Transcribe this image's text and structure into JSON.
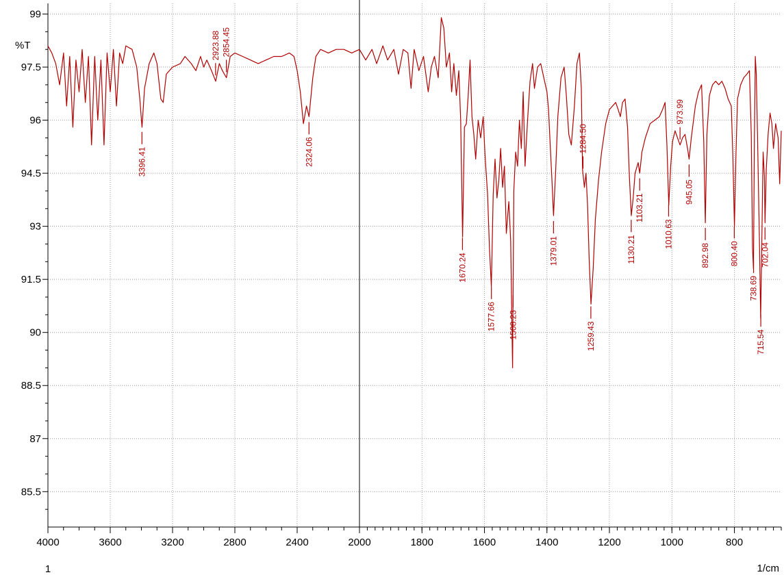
{
  "chart_data": {
    "type": "line",
    "title": "",
    "ylabel": "%T",
    "xlabel": "1/cm",
    "spectrum_index": "1",
    "xlim": [
      4000,
      650
    ],
    "ylim": [
      84.5,
      99.3
    ],
    "x_breaks": [
      [
        4000,
        2000,
        0,
        455
      ],
      [
        2000,
        650,
        455,
        1071
      ]
    ],
    "grid": true,
    "colors": {
      "spectrum": "#b00000",
      "grid": "#9a9a9a",
      "axis": "#000000",
      "index": "#c00000"
    },
    "x_ticks": [
      {
        "value": 4000,
        "label": "4000"
      },
      {
        "value": 3600,
        "label": "3600"
      },
      {
        "value": 3200,
        "label": "3200"
      },
      {
        "value": 2800,
        "label": "2800"
      },
      {
        "value": 2400,
        "label": "2400"
      },
      {
        "value": 2000,
        "label": "2000"
      },
      {
        "value": 1800,
        "label": "1800"
      },
      {
        "value": 1600,
        "label": "1600"
      },
      {
        "value": 1400,
        "label": "1400"
      },
      {
        "value": 1200,
        "label": "1200"
      },
      {
        "value": 1000,
        "label": "1000"
      },
      {
        "value": 800,
        "label": "800"
      }
    ],
    "y_ticks": [
      {
        "value": 99,
        "label": "99"
      },
      {
        "value": 97.5,
        "label": "97.5"
      },
      {
        "value": 96,
        "label": "96"
      },
      {
        "value": 94.5,
        "label": "94.5"
      },
      {
        "value": 93,
        "label": "93"
      },
      {
        "value": 91.5,
        "label": "91.5"
      },
      {
        "value": 90,
        "label": "90"
      },
      {
        "value": 88.5,
        "label": "88.5"
      },
      {
        "value": 87,
        "label": "87"
      },
      {
        "value": 85.5,
        "label": "85.5"
      }
    ],
    "spectrum": [
      [
        4000,
        98.1
      ],
      [
        3975,
        97.9
      ],
      [
        3950,
        97.6
      ],
      [
        3925,
        97.0
      ],
      [
        3900,
        97.9
      ],
      [
        3880,
        96.4
      ],
      [
        3860,
        97.8
      ],
      [
        3840,
        95.8
      ],
      [
        3820,
        97.7
      ],
      [
        3800,
        96.8
      ],
      [
        3780,
        98.0
      ],
      [
        3760,
        96.5
      ],
      [
        3740,
        97.8
      ],
      [
        3720,
        95.3
      ],
      [
        3700,
        97.8
      ],
      [
        3680,
        96.0
      ],
      [
        3660,
        97.7
      ],
      [
        3640,
        95.3
      ],
      [
        3620,
        97.9
      ],
      [
        3600,
        96.8
      ],
      [
        3580,
        98.0
      ],
      [
        3560,
        96.4
      ],
      [
        3540,
        97.9
      ],
      [
        3520,
        97.6
      ],
      [
        3500,
        98.1
      ],
      [
        3460,
        98.0
      ],
      [
        3430,
        97.5
      ],
      [
        3410,
        96.6
      ],
      [
        3396,
        95.8
      ],
      [
        3380,
        96.9
      ],
      [
        3350,
        97.6
      ],
      [
        3320,
        97.9
      ],
      [
        3300,
        97.6
      ],
      [
        3275,
        96.6
      ],
      [
        3260,
        96.5
      ],
      [
        3240,
        97.3
      ],
      [
        3200,
        97.5
      ],
      [
        3150,
        97.6
      ],
      [
        3120,
        97.8
      ],
      [
        3080,
        97.6
      ],
      [
        3050,
        97.4
      ],
      [
        3020,
        97.8
      ],
      [
        3000,
        97.5
      ],
      [
        2980,
        97.7
      ],
      [
        2950,
        97.4
      ],
      [
        2923,
        97.1
      ],
      [
        2900,
        97.6
      ],
      [
        2880,
        97.4
      ],
      [
        2854,
        97.2
      ],
      [
        2830,
        97.8
      ],
      [
        2800,
        97.9
      ],
      [
        2750,
        97.8
      ],
      [
        2700,
        97.7
      ],
      [
        2650,
        97.6
      ],
      [
        2600,
        97.7
      ],
      [
        2550,
        97.8
      ],
      [
        2500,
        97.8
      ],
      [
        2450,
        97.9
      ],
      [
        2420,
        97.8
      ],
      [
        2400,
        97.4
      ],
      [
        2380,
        96.8
      ],
      [
        2360,
        95.9
      ],
      [
        2340,
        96.4
      ],
      [
        2324,
        96.1
      ],
      [
        2300,
        97.2
      ],
      [
        2280,
        97.8
      ],
      [
        2250,
        98.0
      ],
      [
        2200,
        97.9
      ],
      [
        2150,
        98.0
      ],
      [
        2100,
        98.0
      ],
      [
        2050,
        97.9
      ],
      [
        2000,
        98.0
      ],
      [
        1980,
        97.7
      ],
      [
        1960,
        98.0
      ],
      [
        1945,
        97.6
      ],
      [
        1925,
        98.1
      ],
      [
        1910,
        97.7
      ],
      [
        1890,
        98.0
      ],
      [
        1875,
        97.3
      ],
      [
        1860,
        98.0
      ],
      [
        1845,
        97.9
      ],
      [
        1835,
        96.9
      ],
      [
        1825,
        98.0
      ],
      [
        1810,
        97.4
      ],
      [
        1795,
        97.8
      ],
      [
        1780,
        96.8
      ],
      [
        1770,
        97.5
      ],
      [
        1760,
        97.8
      ],
      [
        1748,
        97.2
      ],
      [
        1738,
        98.9
      ],
      [
        1730,
        98.6
      ],
      [
        1722,
        97.5
      ],
      [
        1712,
        97.9
      ],
      [
        1705,
        96.8
      ],
      [
        1698,
        97.6
      ],
      [
        1690,
        96.7
      ],
      [
        1682,
        97.4
      ],
      [
        1676,
        96.0
      ],
      [
        1670,
        92.7
      ],
      [
        1664,
        95.8
      ],
      [
        1658,
        95.9
      ],
      [
        1652,
        96.7
      ],
      [
        1646,
        97.7
      ],
      [
        1640,
        96.1
      ],
      [
        1634,
        95.6
      ],
      [
        1628,
        94.9
      ],
      [
        1620,
        96.0
      ],
      [
        1612,
        95.5
      ],
      [
        1604,
        96.1
      ],
      [
        1598,
        95.0
      ],
      [
        1590,
        93.9
      ],
      [
        1584,
        92.4
      ],
      [
        1578,
        91.3
      ],
      [
        1572,
        93.9
      ],
      [
        1566,
        94.9
      ],
      [
        1560,
        93.8
      ],
      [
        1554,
        94.3
      ],
      [
        1548,
        95.2
      ],
      [
        1542,
        94.1
      ],
      [
        1536,
        94.7
      ],
      [
        1530,
        92.8
      ],
      [
        1522,
        93.7
      ],
      [
        1516,
        92.6
      ],
      [
        1510,
        89.0
      ],
      [
        1506,
        94.0
      ],
      [
        1500,
        95.1
      ],
      [
        1494,
        94.7
      ],
      [
        1488,
        96.0
      ],
      [
        1482,
        95.2
      ],
      [
        1476,
        96.8
      ],
      [
        1470,
        94.7
      ],
      [
        1462,
        96.0
      ],
      [
        1454,
        97.1
      ],
      [
        1446,
        97.6
      ],
      [
        1440,
        96.9
      ],
      [
        1430,
        97.5
      ],
      [
        1420,
        97.6
      ],
      [
        1410,
        97.2
      ],
      [
        1400,
        96.8
      ],
      [
        1395,
        96.3
      ],
      [
        1390,
        95.4
      ],
      [
        1384,
        94.3
      ],
      [
        1379,
        93.3
      ],
      [
        1372,
        94.6
      ],
      [
        1365,
        96.1
      ],
      [
        1355,
        97.2
      ],
      [
        1345,
        97.5
      ],
      [
        1338,
        96.7
      ],
      [
        1330,
        95.6
      ],
      [
        1322,
        95.3
      ],
      [
        1312,
        96.4
      ],
      [
        1304,
        97.6
      ],
      [
        1296,
        97.9
      ],
      [
        1290,
        96.9
      ],
      [
        1286,
        94.6
      ],
      [
        1280,
        94.1
      ],
      [
        1275,
        94.5
      ],
      [
        1270,
        93.6
      ],
      [
        1265,
        92.1
      ],
      [
        1259,
        90.8
      ],
      [
        1252,
        91.8
      ],
      [
        1245,
        93.2
      ],
      [
        1235,
        94.3
      ],
      [
        1225,
        95.1
      ],
      [
        1212,
        95.9
      ],
      [
        1200,
        96.3
      ],
      [
        1190,
        96.4
      ],
      [
        1180,
        96.5
      ],
      [
        1172,
        96.3
      ],
      [
        1165,
        96.1
      ],
      [
        1158,
        96.5
      ],
      [
        1150,
        96.6
      ],
      [
        1142,
        95.8
      ],
      [
        1136,
        94.4
      ],
      [
        1130,
        93.3
      ],
      [
        1124,
        93.8
      ],
      [
        1118,
        94.5
      ],
      [
        1108,
        94.8
      ],
      [
        1103,
        94.5
      ],
      [
        1096,
        95.1
      ],
      [
        1085,
        95.5
      ],
      [
        1070,
        95.9
      ],
      [
        1055,
        96.0
      ],
      [
        1040,
        96.1
      ],
      [
        1030,
        96.3
      ],
      [
        1022,
        96.5
      ],
      [
        1016,
        95.3
      ],
      [
        1010,
        93.6
      ],
      [
        1004,
        94.7
      ],
      [
        998,
        95.4
      ],
      [
        990,
        95.7
      ],
      [
        982,
        95.5
      ],
      [
        974,
        95.3
      ],
      [
        966,
        95.5
      ],
      [
        958,
        95.6
      ],
      [
        950,
        95.2
      ],
      [
        945,
        94.9
      ],
      [
        938,
        95.5
      ],
      [
        925,
        96.4
      ],
      [
        915,
        96.8
      ],
      [
        905,
        97.0
      ],
      [
        898,
        95.4
      ],
      [
        893,
        93.1
      ],
      [
        888,
        95.6
      ],
      [
        880,
        96.7
      ],
      [
        870,
        97.0
      ],
      [
        860,
        97.1
      ],
      [
        850,
        97.0
      ],
      [
        840,
        97.1
      ],
      [
        830,
        96.9
      ],
      [
        820,
        96.6
      ],
      [
        810,
        96.4
      ],
      [
        805,
        95.0
      ],
      [
        800,
        93.0
      ],
      [
        795,
        95.0
      ],
      [
        790,
        96.6
      ],
      [
        780,
        97.0
      ],
      [
        770,
        97.2
      ],
      [
        760,
        97.3
      ],
      [
        752,
        97.4
      ],
      [
        746,
        95.6
      ],
      [
        742,
        92.4
      ],
      [
        739,
        91.8
      ],
      [
        736,
        95.5
      ],
      [
        733,
        97.8
      ],
      [
        730,
        97.3
      ],
      [
        726,
        95.6
      ],
      [
        720,
        92.6
      ],
      [
        716,
        90.4
      ],
      [
        712,
        92.7
      ],
      [
        708,
        95.1
      ],
      [
        704,
        94.4
      ],
      [
        702,
        93.1
      ],
      [
        698,
        94.6
      ],
      [
        692,
        95.6
      ],
      [
        686,
        96.2
      ],
      [
        680,
        95.9
      ],
      [
        675,
        95.2
      ],
      [
        668,
        95.9
      ],
      [
        660,
        95.5
      ],
      [
        655,
        94.2
      ],
      [
        650,
        95.7
      ]
    ],
    "peaks": [
      {
        "x": 3396.41,
        "label": "3396.41",
        "dir": "down"
      },
      {
        "x": 2923.88,
        "label": "2923.88",
        "dir": "up"
      },
      {
        "x": 2854.45,
        "label": "2854.45",
        "dir": "up"
      },
      {
        "x": 2324.06,
        "label": "2324.06",
        "dir": "down"
      },
      {
        "x": 1670.24,
        "label": "1670.24",
        "dir": "down"
      },
      {
        "x": 1577.66,
        "label": "1577.66",
        "dir": "down"
      },
      {
        "x": 1508.23,
        "label": "1508.23",
        "dir": "down"
      },
      {
        "x": 1379.01,
        "label": "1379.01",
        "dir": "down"
      },
      {
        "x": 1284.5,
        "label": "1284.50",
        "dir": "up"
      },
      {
        "x": 1259.43,
        "label": "1259.43",
        "dir": "down"
      },
      {
        "x": 1130.21,
        "label": "1130.21",
        "dir": "down"
      },
      {
        "x": 1103.21,
        "label": "1103.21",
        "dir": "down"
      },
      {
        "x": 1010.63,
        "label": "1010.63",
        "dir": "down"
      },
      {
        "x": 973.99,
        "label": "973.99",
        "dir": "up"
      },
      {
        "x": 945.05,
        "label": "945.05",
        "dir": "down"
      },
      {
        "x": 892.98,
        "label": "892.98",
        "dir": "down"
      },
      {
        "x": 800.4,
        "label": "800.40",
        "dir": "down"
      },
      {
        "x": 738.69,
        "label": "738.69",
        "dir": "down"
      },
      {
        "x": 715.54,
        "label": "715.54",
        "dir": "down"
      },
      {
        "x": 702.04,
        "label": "702.04",
        "dir": "down"
      }
    ]
  }
}
